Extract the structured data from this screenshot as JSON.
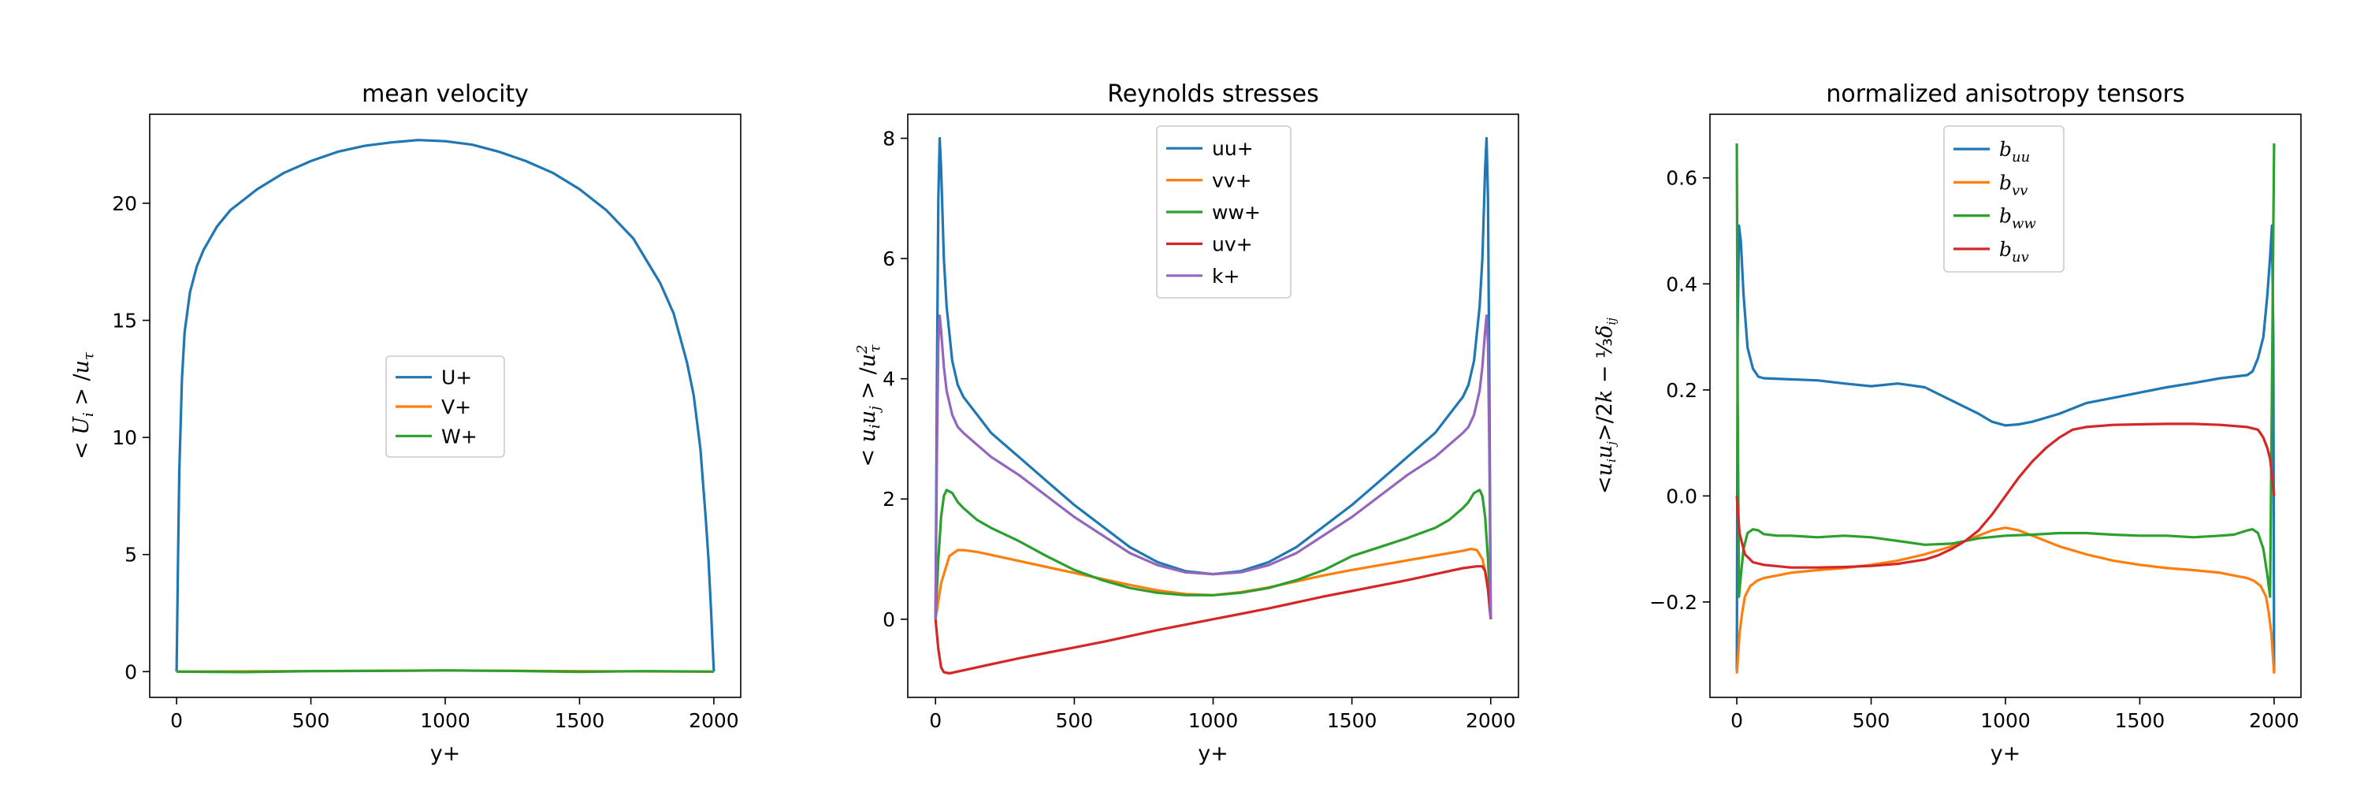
{
  "chart_data": [
    {
      "type": "line",
      "title": "mean velocity",
      "xlabel": "y+",
      "ylabel": "<U_i>/u_τ",
      "xlim": [
        -100,
        2100
      ],
      "ylim": [
        -1.1,
        23.8
      ],
      "xticks": [
        "0",
        "500",
        "1000",
        "1500",
        "2000"
      ],
      "yticks": [
        "0",
        "5",
        "10",
        "15",
        "20"
      ],
      "xtick_values": [
        0,
        500,
        1000,
        1500,
        2000
      ],
      "ytick_values": [
        0,
        5,
        10,
        15,
        20
      ],
      "legend_placement": "center",
      "series": [
        {
          "name": "U+",
          "color": "#1f77b4",
          "x": [
            0,
            5,
            10,
            20,
            30,
            50,
            75,
            100,
            150,
            200,
            300,
            400,
            500,
            600,
            700,
            800,
            900,
            1000,
            1100,
            1200,
            1300,
            1400,
            1500,
            1600,
            1700,
            1800,
            1850,
            1900,
            1925,
            1950,
            1970,
            1980,
            1990,
            1995,
            2000
          ],
          "y": [
            0,
            4.5,
            8.5,
            12.5,
            14.5,
            16.2,
            17.3,
            18.0,
            19.0,
            19.7,
            20.6,
            21.3,
            21.8,
            22.2,
            22.45,
            22.6,
            22.7,
            22.65,
            22.5,
            22.2,
            21.8,
            21.3,
            20.6,
            19.7,
            18.5,
            16.6,
            15.3,
            13.2,
            11.8,
            9.5,
            6.5,
            4.8,
            2.5,
            1.2,
            0
          ]
        },
        {
          "name": "V+",
          "color": "#ff7f0e",
          "x": [
            0,
            500,
            1000,
            1500,
            2000
          ],
          "y": [
            0,
            0.02,
            0.05,
            0.02,
            0
          ]
        },
        {
          "name": "W+",
          "color": "#2ca02c",
          "x": [
            0,
            250,
            500,
            750,
            1000,
            1250,
            1500,
            1750,
            2000
          ],
          "y": [
            0,
            -0.02,
            0.02,
            0.03,
            0.05,
            0.03,
            -0.01,
            0.02,
            0
          ]
        }
      ]
    },
    {
      "type": "line",
      "title": "Reynolds stresses",
      "xlabel": "y+",
      "ylabel": "<u_i u_j>/u_τ²",
      "xlim": [
        -100,
        2100
      ],
      "ylim": [
        -1.3,
        8.4
      ],
      "xticks": [
        "0",
        "500",
        "1000",
        "1500",
        "2000"
      ],
      "yticks": [
        "0",
        "2",
        "4",
        "6",
        "8"
      ],
      "xtick_values": [
        0,
        500,
        1000,
        1500,
        2000
      ],
      "ytick_values": [
        0,
        2,
        4,
        6,
        8
      ],
      "legend_placement": "upper center",
      "series": [
        {
          "name": "uu+",
          "color": "#1f77b4",
          "x": [
            0,
            5,
            10,
            15,
            20,
            30,
            40,
            60,
            80,
            100,
            150,
            200,
            300,
            400,
            500,
            600,
            700,
            800,
            900,
            1000,
            1100,
            1200,
            1300,
            1400,
            1500,
            1600,
            1700,
            1800,
            1850,
            1900,
            1920,
            1940,
            1960,
            1970,
            1980,
            1985,
            1990,
            1995,
            2000
          ],
          "y": [
            0,
            4.0,
            7.0,
            8.0,
            7.5,
            6.0,
            5.2,
            4.3,
            3.9,
            3.7,
            3.4,
            3.1,
            2.7,
            2.3,
            1.9,
            1.55,
            1.2,
            0.95,
            0.8,
            0.75,
            0.8,
            0.95,
            1.2,
            1.55,
            1.9,
            2.3,
            2.7,
            3.1,
            3.4,
            3.7,
            3.9,
            4.3,
            5.2,
            6.0,
            7.5,
            8.0,
            7.0,
            4.0,
            0
          ]
        },
        {
          "name": "vv+",
          "color": "#ff7f0e",
          "x": [
            0,
            20,
            50,
            80,
            100,
            150,
            200,
            300,
            400,
            500,
            600,
            700,
            800,
            900,
            1000,
            1100,
            1200,
            1300,
            1400,
            1500,
            1600,
            1700,
            1800,
            1900,
            1930,
            1950,
            1970,
            1980,
            1990,
            2000
          ],
          "y": [
            0,
            0.6,
            1.05,
            1.15,
            1.15,
            1.12,
            1.07,
            0.97,
            0.87,
            0.77,
            0.67,
            0.57,
            0.48,
            0.42,
            0.4,
            0.45,
            0.53,
            0.63,
            0.73,
            0.82,
            0.9,
            0.98,
            1.06,
            1.14,
            1.17,
            1.15,
            1.0,
            0.8,
            0.5,
            0
          ]
        },
        {
          "name": "ww+",
          "color": "#2ca02c",
          "x": [
            0,
            10,
            20,
            30,
            40,
            60,
            80,
            100,
            150,
            200,
            300,
            400,
            500,
            600,
            700,
            800,
            900,
            1000,
            1100,
            1200,
            1300,
            1400,
            1500,
            1600,
            1700,
            1800,
            1850,
            1900,
            1920,
            1940,
            1960,
            1970,
            1980,
            1990,
            2000
          ],
          "y": [
            0,
            1.0,
            1.7,
            2.05,
            2.15,
            2.1,
            1.95,
            1.85,
            1.65,
            1.52,
            1.3,
            1.05,
            0.82,
            0.65,
            0.52,
            0.44,
            0.4,
            0.4,
            0.44,
            0.52,
            0.65,
            0.82,
            1.05,
            1.2,
            1.35,
            1.52,
            1.65,
            1.85,
            1.95,
            2.1,
            2.15,
            2.05,
            1.7,
            1.0,
            0
          ]
        },
        {
          "name": "uv+",
          "color": "#d62728",
          "x": [
            0,
            10,
            20,
            30,
            50,
            100,
            200,
            300,
            400,
            500,
            600,
            700,
            800,
            900,
            1000,
            1100,
            1200,
            1300,
            1400,
            1500,
            1600,
            1700,
            1800,
            1900,
            1950,
            1970,
            1980,
            1990,
            2000
          ],
          "y": [
            0,
            -0.5,
            -0.8,
            -0.88,
            -0.9,
            -0.85,
            -0.75,
            -0.65,
            -0.56,
            -0.47,
            -0.38,
            -0.28,
            -0.18,
            -0.09,
            0,
            0.09,
            0.18,
            0.28,
            0.38,
            0.47,
            0.56,
            0.65,
            0.75,
            0.85,
            0.88,
            0.88,
            0.8,
            0.5,
            0
          ]
        },
        {
          "name": "k+",
          "color": "#9467bd",
          "x": [
            0,
            5,
            10,
            15,
            20,
            30,
            40,
            60,
            80,
            100,
            150,
            200,
            300,
            400,
            500,
            600,
            700,
            800,
            900,
            1000,
            1100,
            1200,
            1300,
            1400,
            1500,
            1600,
            1700,
            1800,
            1850,
            1900,
            1920,
            1940,
            1960,
            1970,
            1980,
            1985,
            1990,
            1995,
            2000
          ],
          "y": [
            0,
            2.8,
            4.6,
            5.05,
            4.8,
            4.2,
            3.8,
            3.4,
            3.2,
            3.1,
            2.9,
            2.7,
            2.4,
            2.05,
            1.7,
            1.4,
            1.1,
            0.9,
            0.78,
            0.75,
            0.78,
            0.9,
            1.1,
            1.4,
            1.7,
            2.05,
            2.4,
            2.7,
            2.9,
            3.1,
            3.2,
            3.4,
            3.8,
            4.2,
            4.8,
            5.05,
            4.6,
            2.8,
            0
          ]
        }
      ]
    },
    {
      "type": "line",
      "title": "normalized anisotropy tensors",
      "xlabel": "y+",
      "ylabel": "<u_i u_j>/2k − δ_ij/3",
      "xlim": [
        -100,
        2100
      ],
      "ylim": [
        -0.38,
        0.72
      ],
      "xticks": [
        "0",
        "500",
        "1000",
        "1500",
        "2000"
      ],
      "yticks": [
        "−0.2",
        "0.0",
        "0.2",
        "0.4",
        "0.6"
      ],
      "xtick_values": [
        0,
        500,
        1000,
        1500,
        2000
      ],
      "ytick_values": [
        -0.2,
        0.0,
        0.2,
        0.4,
        0.6
      ],
      "legend_placement": "upper center",
      "series": [
        {
          "name": "b_uu",
          "color": "#1f77b4",
          "x": [
            0,
            3,
            8,
            15,
            25,
            40,
            60,
            80,
            100,
            200,
            300,
            400,
            500,
            600,
            700,
            800,
            900,
            950,
            1000,
            1050,
            1100,
            1200,
            1300,
            1400,
            1500,
            1600,
            1700,
            1800,
            1900,
            1920,
            1940,
            1960,
            1975,
            1985,
            1992,
            1997,
            2000
          ],
          "y": [
            -0.33,
            0.3,
            0.51,
            0.48,
            0.38,
            0.28,
            0.24,
            0.225,
            0.222,
            0.22,
            0.218,
            0.212,
            0.207,
            0.212,
            0.205,
            0.18,
            0.155,
            0.14,
            0.133,
            0.135,
            0.14,
            0.155,
            0.175,
            0.185,
            0.195,
            0.205,
            0.213,
            0.222,
            0.228,
            0.235,
            0.26,
            0.3,
            0.38,
            0.45,
            0.51,
            0.3,
            -0.33
          ]
        },
        {
          "name": "b_vv",
          "color": "#ff7f0e",
          "x": [
            0,
            5,
            10,
            20,
            30,
            50,
            75,
            100,
            150,
            200,
            300,
            400,
            500,
            600,
            700,
            800,
            900,
            950,
            1000,
            1050,
            1100,
            1200,
            1300,
            1400,
            1500,
            1600,
            1700,
            1800,
            1850,
            1900,
            1925,
            1950,
            1970,
            1980,
            1990,
            2000
          ],
          "y": [
            -0.335,
            -0.3,
            -0.26,
            -0.22,
            -0.19,
            -0.17,
            -0.16,
            -0.155,
            -0.15,
            -0.145,
            -0.14,
            -0.136,
            -0.13,
            -0.122,
            -0.11,
            -0.095,
            -0.075,
            -0.065,
            -0.06,
            -0.065,
            -0.075,
            -0.095,
            -0.11,
            -0.122,
            -0.13,
            -0.136,
            -0.14,
            -0.145,
            -0.15,
            -0.155,
            -0.16,
            -0.17,
            -0.19,
            -0.22,
            -0.26,
            -0.335
          ]
        },
        {
          "name": "b_ww",
          "color": "#2ca02c",
          "x": [
            0,
            3,
            8,
            15,
            25,
            40,
            60,
            80,
            100,
            150,
            200,
            300,
            400,
            500,
            600,
            700,
            800,
            900,
            1000,
            1100,
            1200,
            1300,
            1400,
            1500,
            1600,
            1700,
            1800,
            1850,
            1900,
            1920,
            1940,
            1960,
            1975,
            1985,
            1992,
            1997,
            2000
          ],
          "y": [
            0.665,
            0.2,
            -0.19,
            -0.15,
            -0.1,
            -0.07,
            -0.063,
            -0.065,
            -0.072,
            -0.075,
            -0.075,
            -0.078,
            -0.075,
            -0.078,
            -0.085,
            -0.092,
            -0.09,
            -0.08,
            -0.075,
            -0.073,
            -0.07,
            -0.07,
            -0.073,
            -0.075,
            -0.075,
            -0.078,
            -0.075,
            -0.073,
            -0.065,
            -0.063,
            -0.07,
            -0.1,
            -0.15,
            -0.19,
            0.2,
            0.5,
            0.665
          ]
        },
        {
          "name": "b_uv",
          "color": "#d62728",
          "x": [
            0,
            10,
            30,
            60,
            100,
            200,
            300,
            400,
            500,
            600,
            700,
            750,
            800,
            850,
            900,
            950,
            1000,
            1050,
            1100,
            1150,
            1200,
            1250,
            1300,
            1400,
            1500,
            1600,
            1700,
            1800,
            1900,
            1940,
            1960,
            1975,
            1985,
            1992,
            2000
          ],
          "y": [
            0,
            -0.07,
            -0.11,
            -0.125,
            -0.13,
            -0.135,
            -0.135,
            -0.134,
            -0.132,
            -0.128,
            -0.12,
            -0.112,
            -0.1,
            -0.085,
            -0.065,
            -0.035,
            0.0,
            0.035,
            0.065,
            0.09,
            0.11,
            0.125,
            0.13,
            0.134,
            0.135,
            0.136,
            0.136,
            0.134,
            0.13,
            0.125,
            0.11,
            0.09,
            0.07,
            0.04,
            0
          ]
        }
      ]
    }
  ]
}
